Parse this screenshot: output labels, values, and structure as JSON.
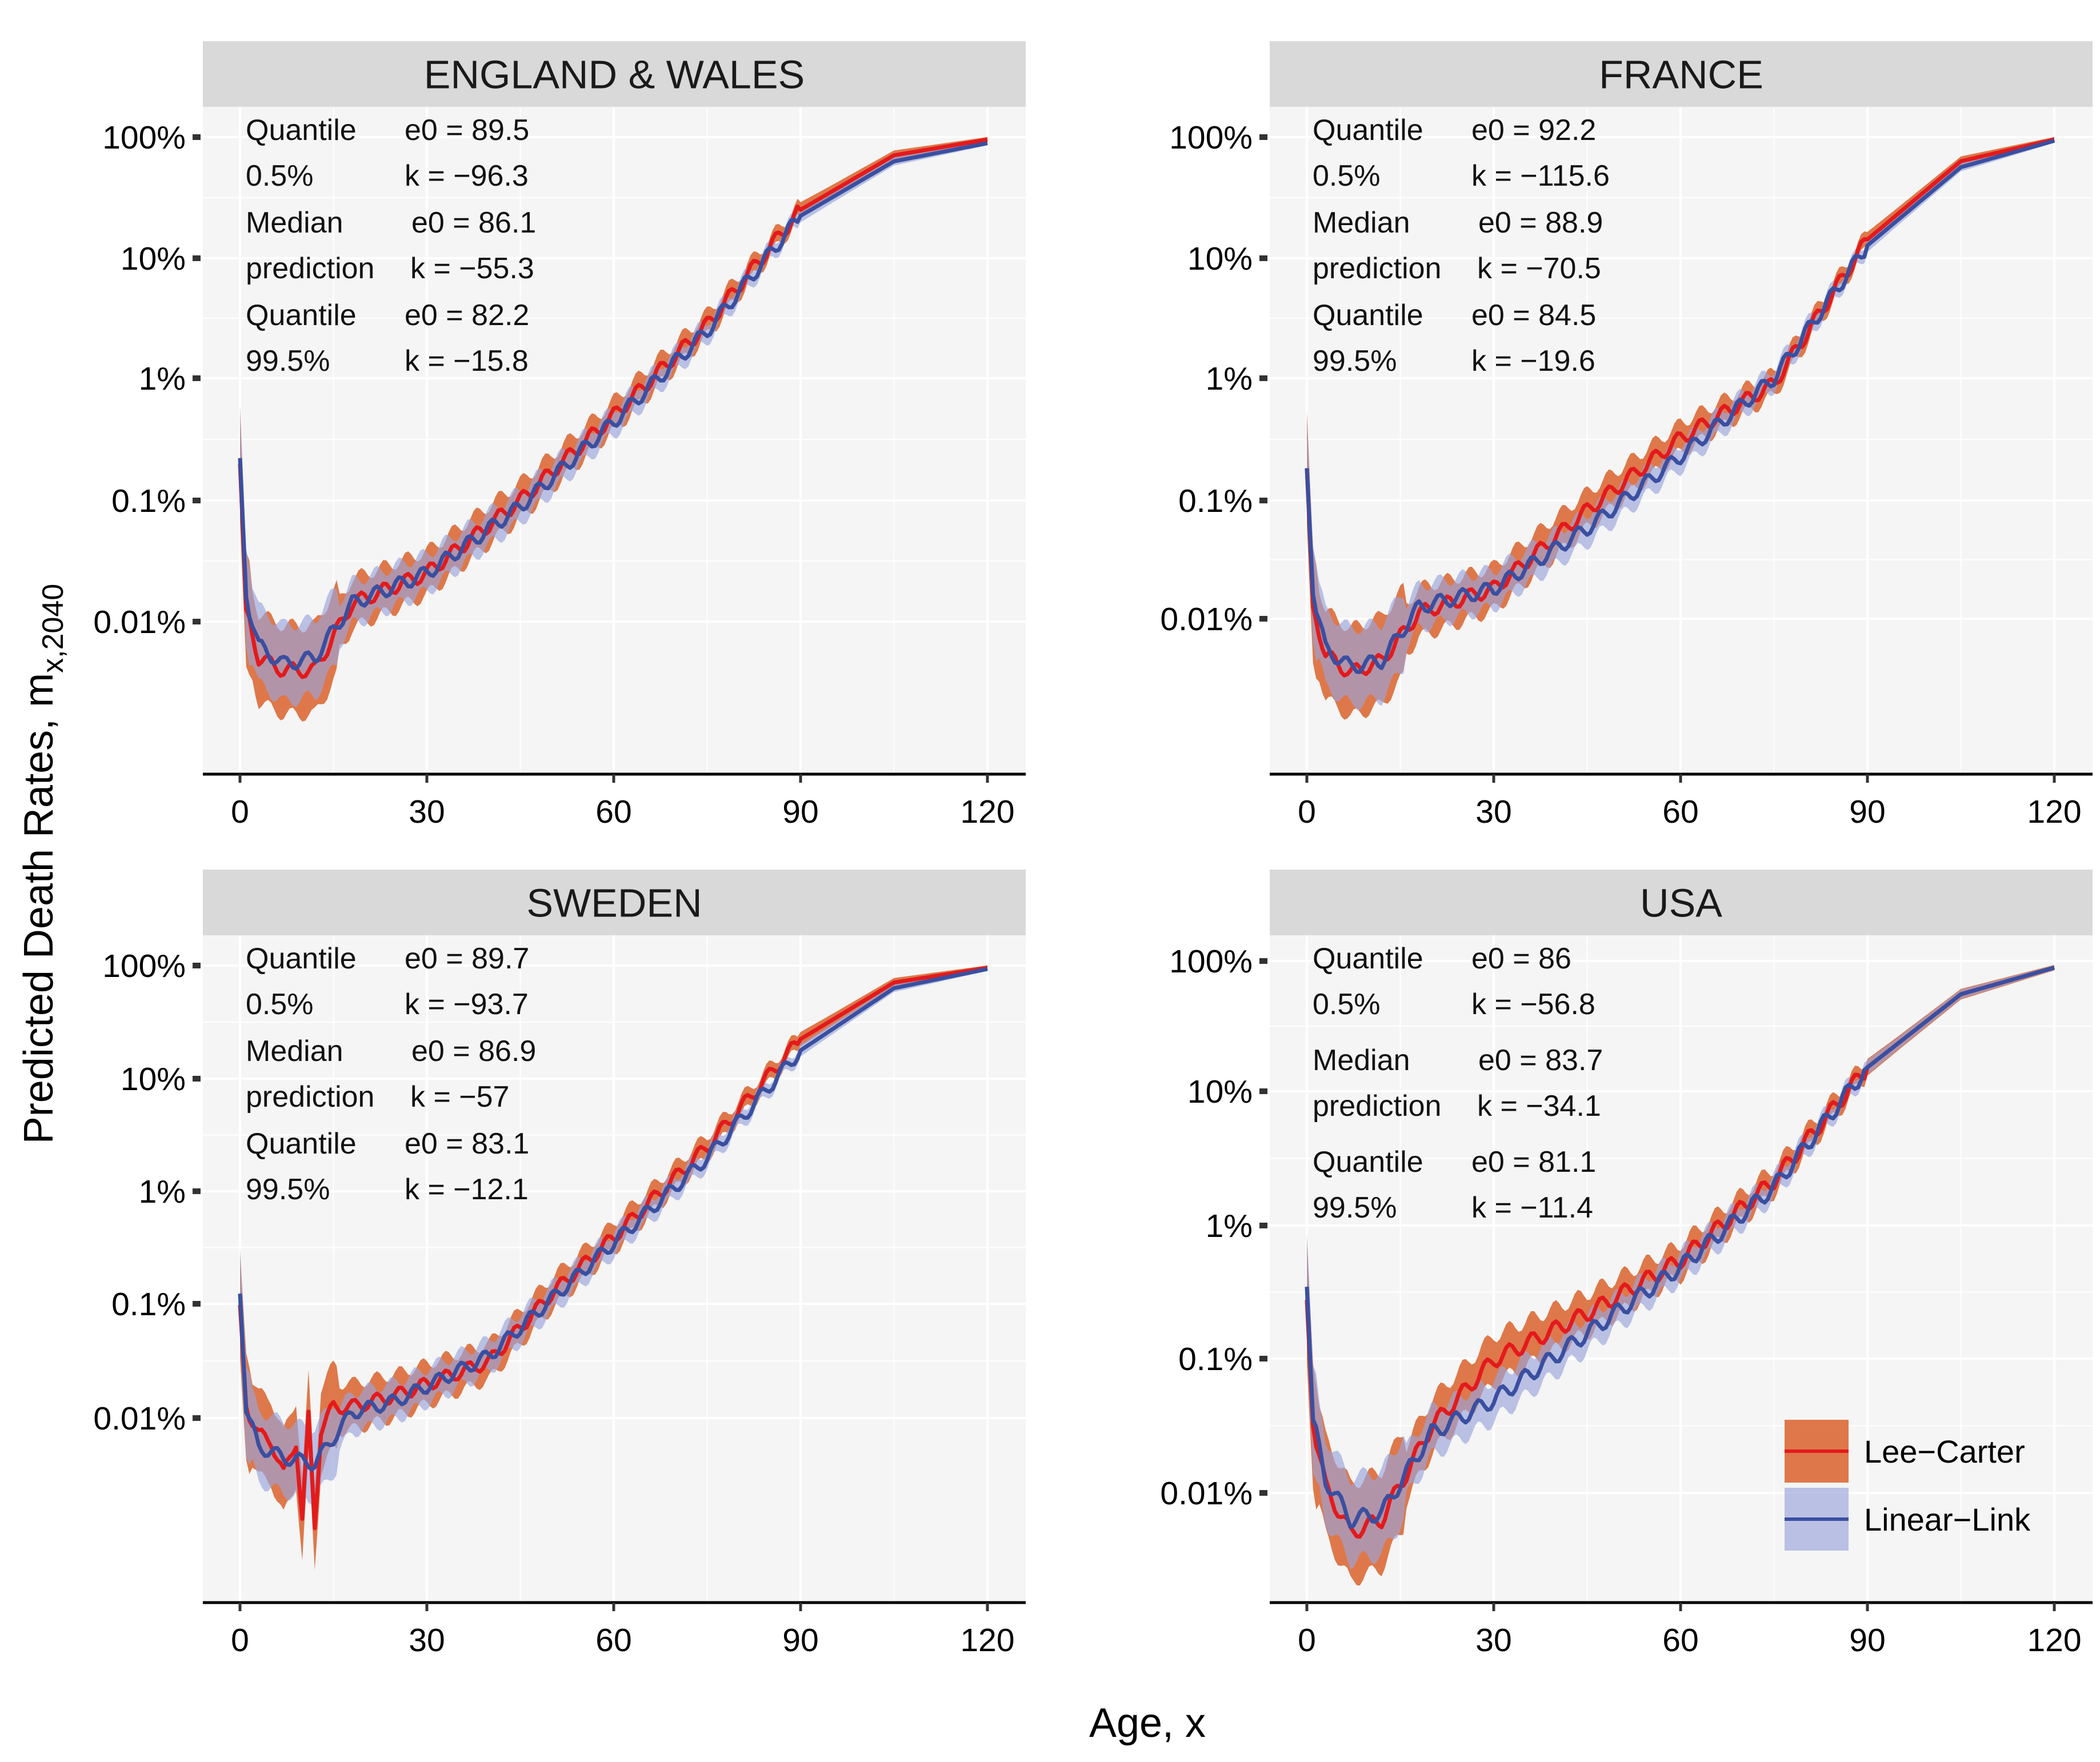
{
  "figure": {
    "ylabel": "Predicted Death Rates, m",
    "ylabel_sub": "x,2040",
    "xlabel": "Age, x"
  },
  "colors": {
    "lee_carter_line": "#e31a1c",
    "lee_carter_band": "#d9622b",
    "linear_link_line": "#3a4fa0",
    "linear_link_band": "#9aa3dc",
    "panel_bg": "#f4f5f4",
    "strip_bg": "#d9d9d9",
    "grid": "#ffffff"
  },
  "legend": {
    "items": [
      {
        "label": "Lee−Carter",
        "color": "#e31a1c",
        "band": "#d9622b"
      },
      {
        "label": "Linear−Link",
        "color": "#3a4fa0",
        "band": "#9aa3dc"
      }
    ]
  },
  "chart_data": [
    {
      "type": "line",
      "title": "ENGLAND & WALES",
      "x_ticks": [
        "0",
        "30",
        "60",
        "90",
        "120"
      ],
      "y_ticks": [
        "100%",
        "10%",
        "1%",
        "0.1%",
        "0.01%"
      ],
      "xlim": [
        0,
        120
      ],
      "ylim_log10": [
        -5.25,
        0.12
      ],
      "annotations": [
        {
          "group": "Quantile",
          "sub": "0.5%",
          "e0": "e0 =   89.5",
          "k": "k   = −96.3"
        },
        {
          "group": "Median",
          "sub": "prediction",
          "e0": "e0 =   86.1",
          "k": "k   = −55.3"
        },
        {
          "group": "Quantile",
          "sub": "99.5%",
          "e0": "e0 =   82.2",
          "k": "k   = −15.8"
        }
      ],
      "series": [
        {
          "name": "Lee−Carter",
          "x": [
            0,
            1,
            3,
            7,
            12,
            18,
            30,
            45,
            60,
            75,
            90,
            105,
            120
          ],
          "log10_values": [
            -2.7,
            -3.9,
            -4.3,
            -4.4,
            -4.4,
            -3.85,
            -3.6,
            -3.0,
            -2.3,
            -1.55,
            -0.6,
            -0.15,
            -0.02
          ]
        },
        {
          "name": "Linear−Link",
          "x": [
            0,
            1,
            3,
            7,
            12,
            18,
            30,
            45,
            60,
            75,
            90,
            105,
            120
          ],
          "log10_values": [
            -2.65,
            -3.8,
            -4.2,
            -4.35,
            -4.3,
            -3.85,
            -3.6,
            -3.05,
            -2.35,
            -1.6,
            -0.65,
            -0.2,
            -0.05
          ]
        }
      ]
    },
    {
      "type": "line",
      "title": "FRANCE",
      "x_ticks": [
        "0",
        "30",
        "60",
        "90",
        "120"
      ],
      "y_ticks": [
        "100%",
        "10%",
        "1%",
        "0.1%",
        "0.01%"
      ],
      "xlim": [
        0,
        120
      ],
      "ylim_log10": [
        -5.25,
        0.12
      ],
      "annotations": [
        {
          "group": "Quantile",
          "sub": "0.5%",
          "e0": "e0 =   92.2",
          "k": "k   = −115.6"
        },
        {
          "group": "Median",
          "sub": "prediction",
          "e0": "e0 =   88.9",
          "k": "k   = −70.5"
        },
        {
          "group": "Quantile",
          "sub": "99.5%",
          "e0": "e0 =   84.5",
          "k": "k   = −19.6"
        }
      ],
      "series": [
        {
          "name": "Lee−Carter",
          "x": [
            0,
            1,
            3,
            7,
            12,
            18,
            30,
            45,
            60,
            75,
            90,
            105,
            120
          ],
          "log10_values": [
            -2.75,
            -3.9,
            -4.3,
            -4.45,
            -4.35,
            -3.95,
            -3.75,
            -3.1,
            -2.5,
            -2.05,
            -0.85,
            -0.2,
            -0.02
          ]
        },
        {
          "name": "Linear−Link",
          "x": [
            0,
            1,
            3,
            7,
            12,
            18,
            30,
            45,
            60,
            75,
            90,
            105,
            120
          ],
          "log10_values": [
            -2.75,
            -3.8,
            -4.25,
            -4.4,
            -4.35,
            -3.9,
            -3.75,
            -3.25,
            -2.65,
            -2.0,
            -0.9,
            -0.25,
            -0.03
          ]
        }
      ]
    },
    {
      "type": "line",
      "title": "SWEDEN",
      "x_ticks": [
        "0",
        "30",
        "60",
        "90",
        "120"
      ],
      "y_ticks": [
        "100%",
        "10%",
        "1%",
        "0.1%",
        "0.01%"
      ],
      "xlim": [
        0,
        120
      ],
      "ylim_log10": [
        -5.6,
        0.12
      ],
      "annotations": [
        {
          "group": "Quantile",
          "sub": "0.5%",
          "e0": "e0 =   89.7",
          "k": "k   = −93.7"
        },
        {
          "group": "Median",
          "sub": "prediction",
          "e0": "e0 =   86.9",
          "k": "k   = −57"
        },
        {
          "group": "Quantile",
          "sub": "99.5%",
          "e0": "e0 =   83.1",
          "k": "k   = −12.1"
        }
      ],
      "series": [
        {
          "name": "Lee−Carter",
          "x": [
            0,
            1,
            3,
            5,
            7,
            9,
            10,
            11,
            12,
            13,
            15,
            18,
            25,
            30,
            40,
            50,
            60,
            75,
            90,
            105,
            120
          ],
          "log10_values": [
            -3.0,
            -3.9,
            -4.15,
            -4.2,
            -4.5,
            -4.2,
            -4.9,
            -4.0,
            -4.95,
            -4.1,
            -3.9,
            -3.9,
            -3.8,
            -3.7,
            -3.5,
            -2.9,
            -2.4,
            -1.6,
            -0.65,
            -0.15,
            -0.02
          ]
        },
        {
          "name": "Linear−Link",
          "x": [
            0,
            1,
            3,
            7,
            12,
            18,
            25,
            40,
            50,
            60,
            75,
            90,
            105,
            120
          ],
          "log10_values": [
            -2.9,
            -3.95,
            -4.25,
            -4.35,
            -4.4,
            -3.95,
            -3.85,
            -3.45,
            -2.95,
            -2.45,
            -1.7,
            -0.75,
            -0.2,
            -0.03
          ]
        }
      ]
    },
    {
      "type": "line",
      "title": "USA",
      "x_ticks": [
        "0",
        "30",
        "60",
        "90",
        "120"
      ],
      "y_ticks": [
        "100%",
        "10%",
        "1%",
        "0.1%",
        "0.01%"
      ],
      "xlim": [
        0,
        120
      ],
      "ylim_log10": [
        -4.85,
        0.12
      ],
      "annotations": [
        {
          "group": "Quantile",
          "sub": "0.5%",
          "e0": "e0 =   86",
          "k": "k   = −56.8"
        },
        {
          "group": "Median",
          "sub": "prediction",
          "e0": "e0 =   83.7",
          "k": "k   = −34.1"
        },
        {
          "group": "Quantile",
          "sub": "99.5%",
          "e0": "e0 =   81.1",
          "k": "k   = −11.4"
        }
      ],
      "series": [
        {
          "name": "Lee−Carter",
          "x": [
            0,
            1,
            3,
            7,
            12,
            20,
            30,
            45,
            60,
            75,
            90,
            105,
            120
          ],
          "log10_values": [
            -2.55,
            -3.5,
            -3.95,
            -4.3,
            -4.2,
            -3.5,
            -3.0,
            -2.65,
            -2.25,
            -1.65,
            -0.8,
            -0.25,
            -0.05
          ]
        },
        {
          "name": "Linear−Link",
          "x": [
            0,
            1,
            3,
            7,
            12,
            20,
            30,
            45,
            60,
            75,
            90,
            105,
            120
          ],
          "log10_values": [
            -2.45,
            -3.45,
            -3.9,
            -4.2,
            -4.15,
            -3.55,
            -3.3,
            -2.8,
            -2.3,
            -1.7,
            -0.8,
            -0.25,
            -0.05
          ]
        }
      ]
    }
  ]
}
